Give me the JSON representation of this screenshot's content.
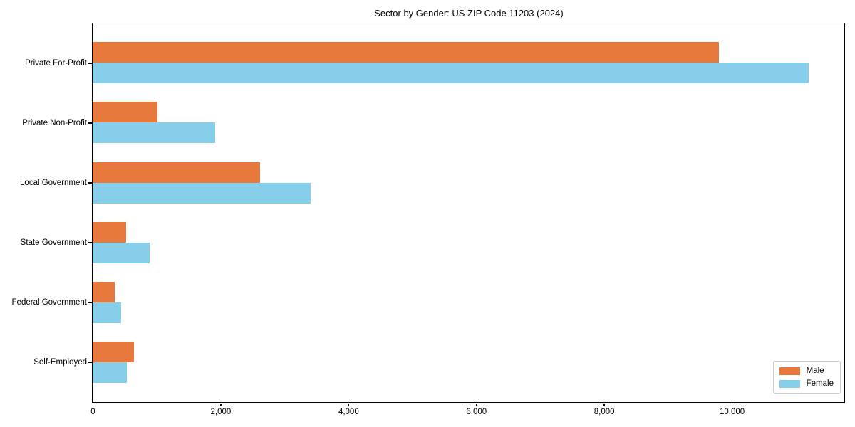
{
  "title": "Sector by Gender: US ZIP Code 11203 (2024)",
  "chart_data": {
    "type": "bar",
    "orientation": "horizontal",
    "title": "Sector by Gender: US ZIP Code 11203 (2024)",
    "categories": [
      "Private For-Profit",
      "Private Non-Profit",
      "Local Government",
      "State Government",
      "Federal Government",
      "Self-Employed"
    ],
    "series": [
      {
        "name": "Male",
        "color": "#e8793c",
        "values": [
          9800,
          1010,
          2620,
          520,
          350,
          650
        ]
      },
      {
        "name": "Female",
        "color": "#87ceeb",
        "values": [
          11200,
          1920,
          3410,
          890,
          440,
          540
        ]
      }
    ],
    "xlim": [
      0,
      11760
    ],
    "xticks": [
      0,
      2000,
      4000,
      6000,
      8000,
      10000
    ],
    "xtick_labels": [
      "0",
      "2,000",
      "4,000",
      "6,000",
      "8,000",
      "10,000"
    ],
    "xlabel": "",
    "ylabel": "",
    "grid": false,
    "legend_position": "lower right",
    "legend_items": [
      "Male",
      "Female"
    ]
  },
  "colors": {
    "male": "#e8793c",
    "female": "#87ceeb",
    "spine": "#000000",
    "legend_border": "#cccccc",
    "background": "#ffffff"
  }
}
